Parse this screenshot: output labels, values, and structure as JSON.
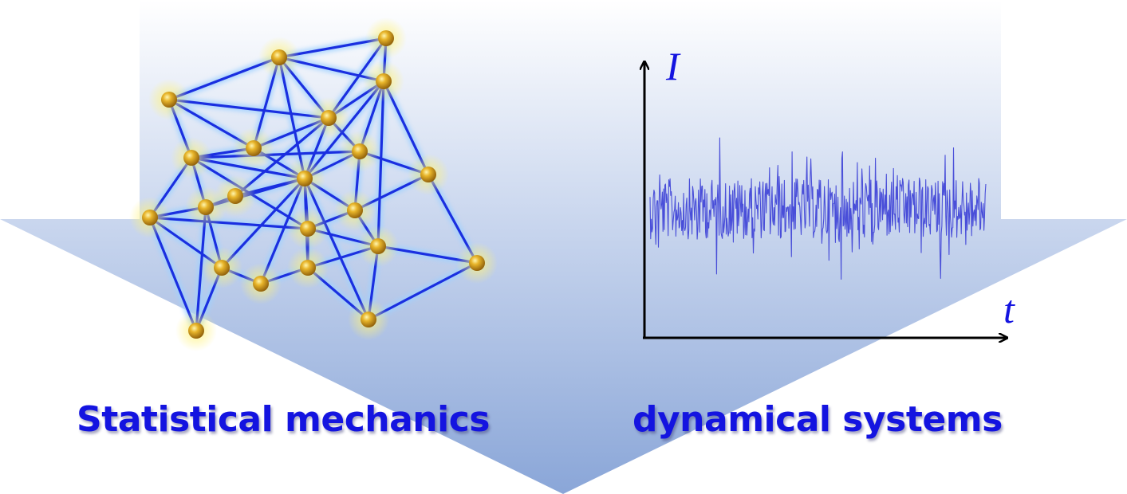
{
  "labels": {
    "left": "Statistical mechanics",
    "right": "dynamical systems"
  },
  "axes": {
    "y_label": "I",
    "x_label": "t"
  },
  "colors": {
    "arrow_top": "#ffffff",
    "arrow_bottom": "#8aa6d8",
    "edge": "#1a2fe0",
    "node": "#d9a51c",
    "node_glow": "#fff27a",
    "signal": "#3b3fd6",
    "axis": "#000000",
    "text": "#1414e0"
  },
  "icons": {
    "network": "network-graph-icon",
    "time_series": "noisy-signal-icon",
    "arrow": "down-arrow-background"
  }
}
